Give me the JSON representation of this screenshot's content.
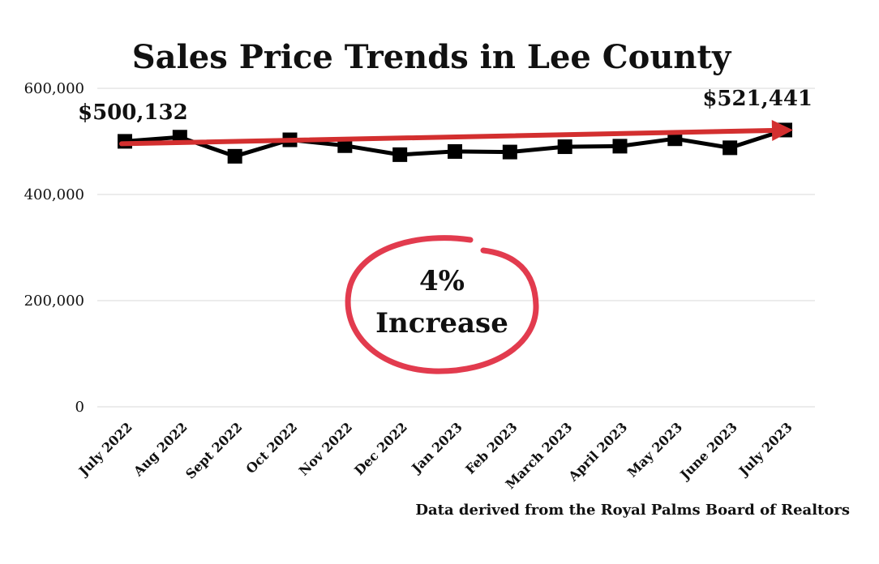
{
  "chart_data": {
    "type": "line",
    "title": "Sales Price Trends in Lee County",
    "categories": [
      "July 2022",
      "Aug 2022",
      "Sept 2022",
      "Oct 2022",
      "Nov 2022",
      "Dec 2022",
      "Jan 2023",
      "Feb 2023",
      "March 2023",
      "April 2023",
      "May 2023",
      "June 2023",
      "July 2023"
    ],
    "series": [
      {
        "values": [
          500132,
          508000,
          472000,
          503000,
          492000,
          475000,
          481000,
          480000,
          490000,
          491000,
          505000,
          488000,
          521441
        ]
      }
    ],
    "ylim": [
      0,
      600000
    ],
    "yticks": [
      "0",
      "200,000",
      "400,000",
      "600,000"
    ],
    "ytick_values": [
      0,
      200000,
      400000,
      600000
    ],
    "grid": true,
    "start_label": "$500,132",
    "end_label": "$521,441",
    "badge_value": "4%",
    "badge_text": "Increase",
    "source_note": "Data derived from the Royal Palms Board of Realtors",
    "colors": {
      "line": "#000000",
      "trend_arrow": "#d32f2f",
      "circle": "#e23b4e",
      "grid": "#d9d9d9"
    }
  }
}
